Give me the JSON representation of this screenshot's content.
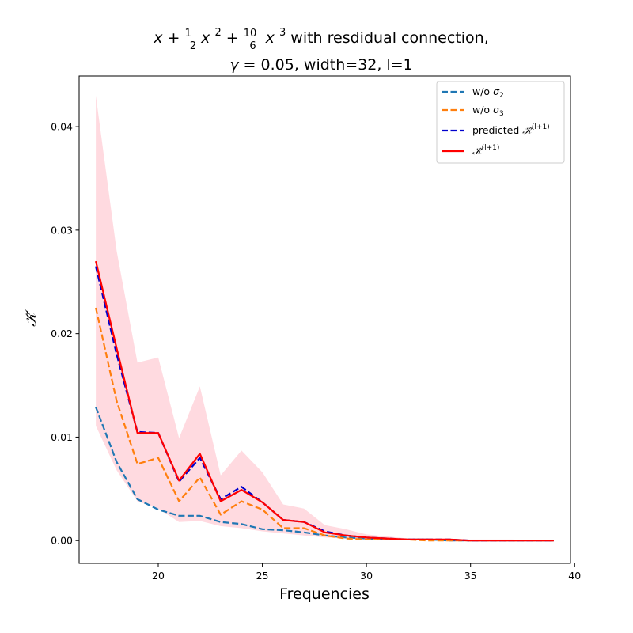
{
  "chart_data": {
    "type": "line",
    "title": {
      "line1_pre": "x + ",
      "frac1_num": "1",
      "frac1_den": "2",
      "mid1": "x",
      "sup1": "2",
      "plus2": " + ",
      "frac2_num": "10",
      "frac2_den": "6",
      "mid2": "x",
      "sup2": "3",
      "line1_post": " with resdidual connection,",
      "line2_gamma": "γ",
      "line2_rest": " = 0.05, width=32, l=1"
    },
    "xlabel": "Frequencies",
    "ylabel": "𝒦̃",
    "xlim": [
      16.2,
      39.8
    ],
    "ylim": [
      -0.0022,
      0.0449
    ],
    "xticks": [
      20,
      25,
      30,
      35,
      40
    ],
    "xtick_labels": [
      "20",
      "25",
      "30",
      "35",
      "40"
    ],
    "yticks": [
      0.0,
      0.01,
      0.02,
      0.03,
      0.04
    ],
    "ytick_labels": [
      "0.00",
      "0.01",
      "0.02",
      "0.03",
      "0.04"
    ],
    "grid": false,
    "legend_placement": "top-right",
    "x": [
      17,
      18,
      19,
      20,
      21,
      22,
      23,
      24,
      25,
      26,
      27,
      28,
      29,
      30,
      31,
      32,
      33,
      34,
      35,
      36,
      37,
      38,
      39
    ],
    "band": {
      "color": "#ffb6c1",
      "lower": [
        0.0111,
        0.0068,
        0.0038,
        0.0031,
        0.0018,
        0.0019,
        0.0014,
        0.0012,
        0.0009,
        0.0007,
        0.0005,
        0.0003,
        0.0002,
        0.0001,
        0.0001,
        0.0001,
        0.0,
        0.0,
        0.0,
        0.0,
        0.0,
        0.0,
        0.0
      ],
      "upper": [
        0.043,
        0.028,
        0.0172,
        0.0177,
        0.0099,
        0.0149,
        0.0063,
        0.0087,
        0.0066,
        0.0035,
        0.0031,
        0.0015,
        0.0011,
        0.0006,
        0.0004,
        0.0002,
        0.0002,
        0.0001,
        0.0001,
        0.0001,
        0.0001,
        0.0,
        0.0
      ]
    },
    "series": [
      {
        "name_base": "w/o ",
        "name_sym": "σ",
        "name_sub": "2",
        "color": "#1f77b4",
        "dash": "dashed",
        "values": [
          0.0129,
          0.0076,
          0.004,
          0.003,
          0.0024,
          0.0024,
          0.0018,
          0.0016,
          0.0011,
          0.001,
          0.0008,
          0.0005,
          0.0003,
          0.0002,
          0.0001,
          0.0001,
          0.0001,
          0.0,
          0.0,
          0.0,
          0.0,
          0.0,
          0.0
        ]
      },
      {
        "name_base": "w/o ",
        "name_sym": "σ",
        "name_sub": "3",
        "color": "#ff7f0e",
        "dash": "dashed",
        "values": [
          0.0225,
          0.0135,
          0.0074,
          0.008,
          0.0038,
          0.0061,
          0.0025,
          0.0038,
          0.003,
          0.0012,
          0.0012,
          0.0005,
          0.0002,
          0.0001,
          0.0001,
          0.0001,
          0.0,
          0.0,
          0.0,
          0.0,
          0.0,
          0.0,
          0.0
        ]
      },
      {
        "name_base": "predicted ",
        "name_sym": "𝒦̃",
        "name_sup": "(l+1)",
        "color": "#0000cd",
        "dash": "dashed",
        "values": [
          0.0265,
          0.018,
          0.0105,
          0.0104,
          0.0057,
          0.008,
          0.004,
          0.0052,
          0.0037,
          0.002,
          0.0018,
          0.0009,
          0.0005,
          0.0003,
          0.0002,
          0.0001,
          0.0001,
          0.0001,
          0.0,
          0.0,
          0.0,
          0.0,
          0.0
        ]
      },
      {
        "name_base": "",
        "name_sym": "𝒦̃",
        "name_sup": "(l+1)",
        "color": "#ff0000",
        "dash": "solid",
        "values": [
          0.027,
          0.0186,
          0.0104,
          0.0104,
          0.0058,
          0.0084,
          0.0038,
          0.0049,
          0.0037,
          0.002,
          0.0018,
          0.0008,
          0.0005,
          0.0003,
          0.0002,
          0.0001,
          0.0001,
          0.0001,
          0.0,
          0.0,
          0.0,
          0.0,
          0.0
        ]
      }
    ]
  }
}
